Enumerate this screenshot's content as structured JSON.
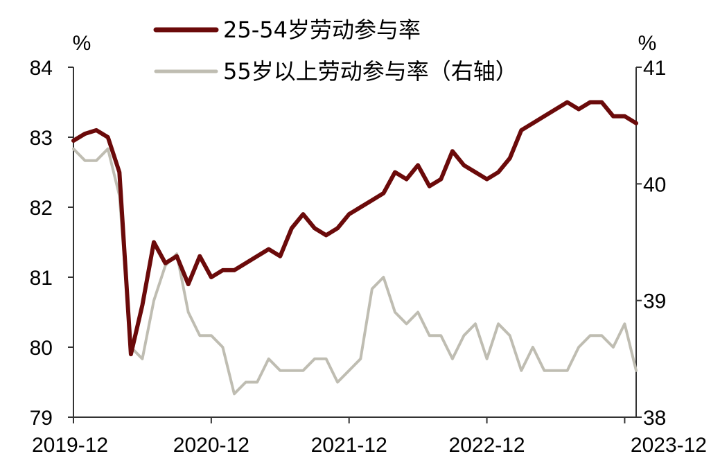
{
  "chart_data": {
    "type": "line",
    "title": "",
    "left_axis": {
      "unit": "%",
      "ylim": [
        79,
        84
      ],
      "ticks": [
        79,
        80,
        81,
        82,
        83,
        84
      ],
      "tick_labels": [
        "79",
        "80",
        "81",
        "82",
        "83",
        "84"
      ]
    },
    "right_axis": {
      "unit": "%",
      "ylim": [
        38,
        41
      ],
      "ticks": [
        38,
        39,
        40,
        41
      ],
      "tick_labels": [
        "38",
        "39",
        "40",
        "41"
      ]
    },
    "x_axis": {
      "start": "2019-12",
      "end": "2023-12",
      "tick_labels": [
        "2019-12",
        "2020-12",
        "2021-12",
        "2022-12",
        "2023-12"
      ]
    },
    "legend_position": "top-center",
    "grid": false,
    "series": [
      {
        "name": "25-54岁劳动参与率",
        "axis": "left",
        "color": "#6b0a0a",
        "values": [
          82.95,
          83.05,
          83.1,
          83.0,
          82.5,
          79.9,
          80.6,
          81.5,
          81.2,
          81.3,
          80.9,
          81.3,
          81.0,
          81.1,
          81.1,
          81.2,
          81.3,
          81.4,
          81.3,
          81.7,
          81.9,
          81.7,
          81.6,
          81.7,
          81.9,
          82.0,
          82.1,
          82.2,
          82.5,
          82.4,
          82.6,
          82.3,
          82.4,
          82.8,
          82.6,
          82.5,
          82.4,
          82.5,
          82.7,
          83.1,
          83.2,
          83.3,
          83.4,
          83.5,
          83.4,
          83.5,
          83.5,
          83.3,
          83.3,
          83.2
        ]
      },
      {
        "name": "55岁以上劳动参与率（右轴）",
        "axis": "right",
        "color": "#bfbdb2",
        "values": [
          40.3,
          40.2,
          40.2,
          40.3,
          39.9,
          38.6,
          38.5,
          39.0,
          39.3,
          39.4,
          38.9,
          38.7,
          38.7,
          38.6,
          38.2,
          38.3,
          38.3,
          38.5,
          38.4,
          38.4,
          38.4,
          38.5,
          38.5,
          38.3,
          38.4,
          38.5,
          39.1,
          39.2,
          38.9,
          38.8,
          38.9,
          38.7,
          38.7,
          38.5,
          38.7,
          38.8,
          38.5,
          38.8,
          38.7,
          38.4,
          38.6,
          38.4,
          38.4,
          38.4,
          38.6,
          38.7,
          38.7,
          38.6,
          38.8,
          38.4
        ]
      }
    ]
  }
}
